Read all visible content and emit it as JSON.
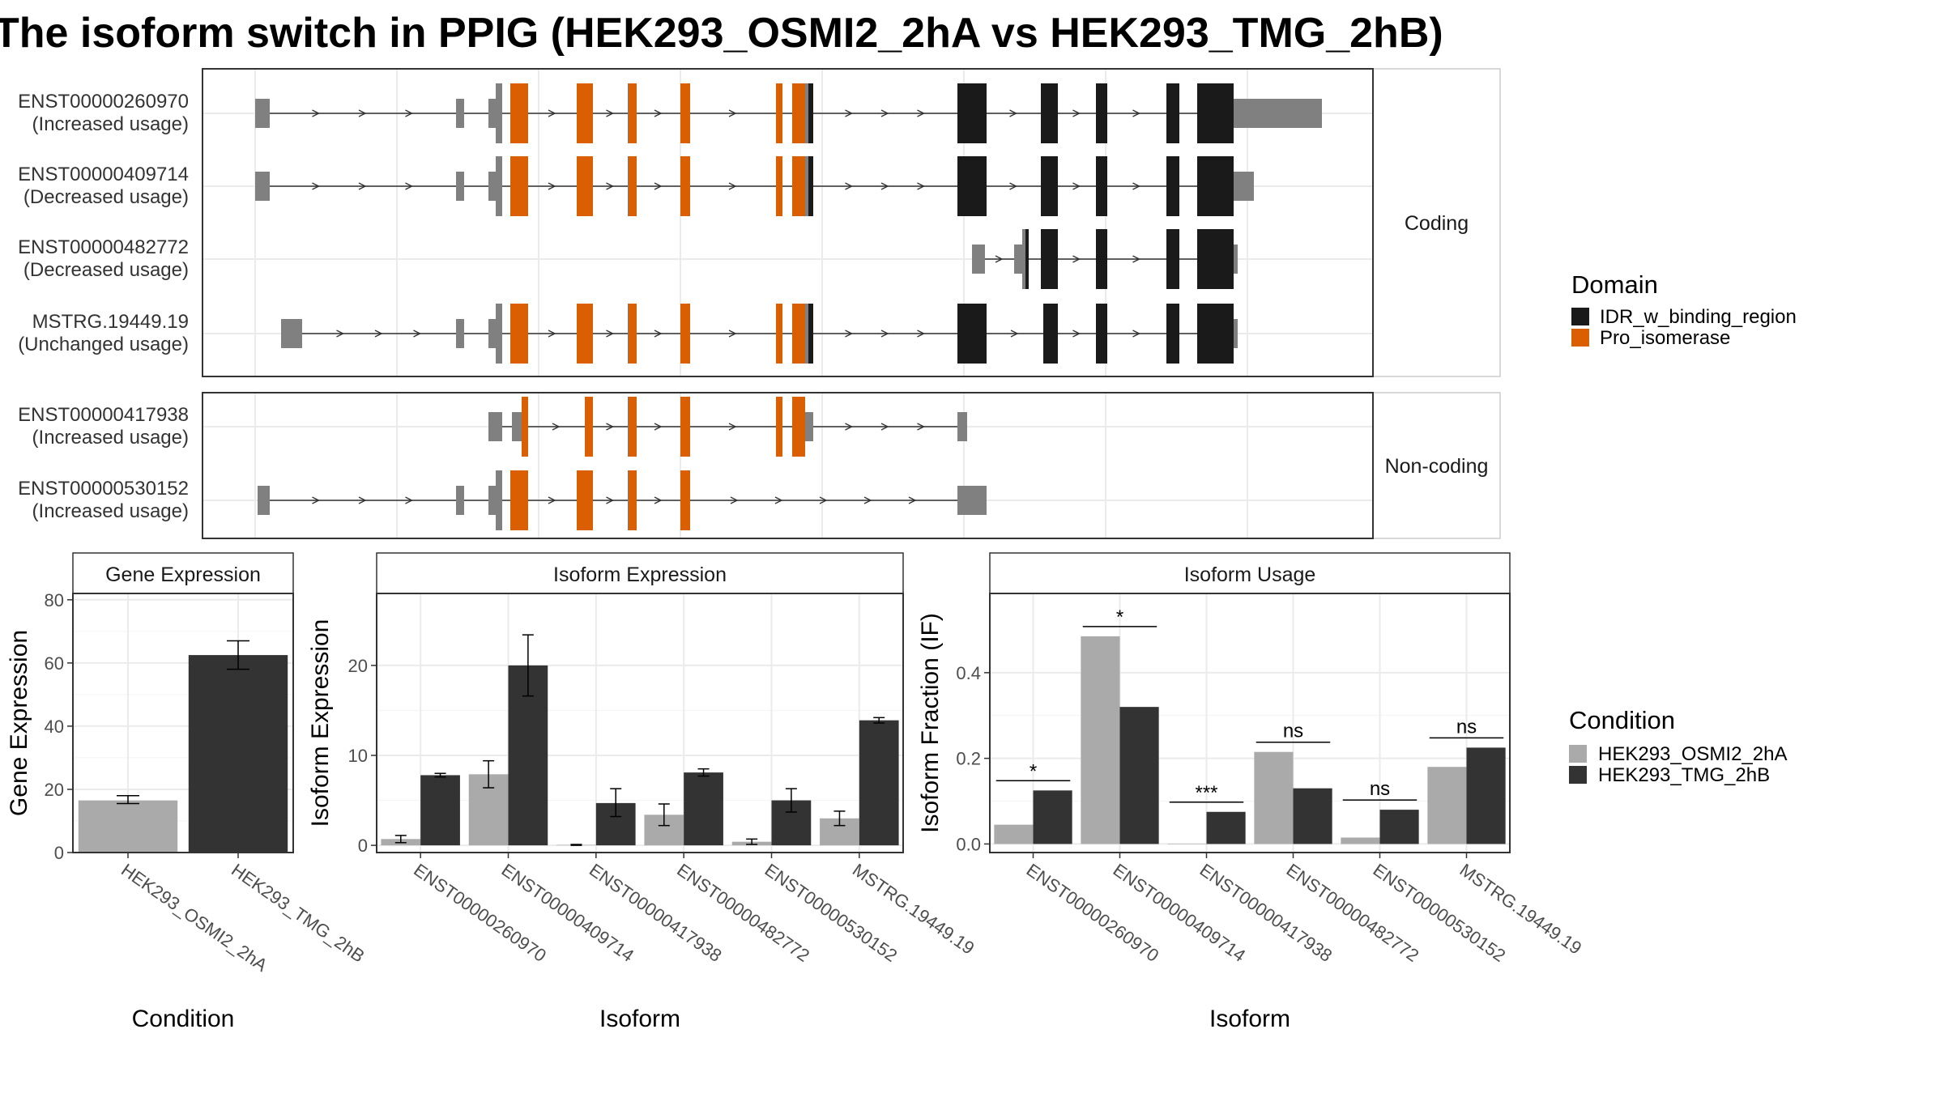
{
  "title": "The isoform switch in PPIG (HEK293_OSMI2_2hA vs HEK293_TMG_2hB)",
  "colors": {
    "idr": "#1a1a1a",
    "pro": "#d95f02",
    "utr": "#808080",
    "cond1": "#aaaaaa",
    "cond2": "#333333",
    "panel_border": "#333333",
    "grid": "#ebebeb"
  },
  "transcript_panel": {
    "facets": [
      {
        "label": "Coding",
        "transcripts": [
          {
            "id": "ENST00000260970",
            "usage": "(Increased usage)"
          },
          {
            "id": "ENST00000409714",
            "usage": "(Decreased usage)"
          },
          {
            "id": "ENST00000482772",
            "usage": "(Decreased usage)"
          },
          {
            "id": "MSTRG.19449.19",
            "usage": "(Unchanged usage)"
          }
        ]
      },
      {
        "label": "Non-coding",
        "transcripts": [
          {
            "id": "ENST00000417938",
            "usage": "(Increased usage)"
          },
          {
            "id": "ENST00000530152",
            "usage": "(Increased usage)"
          }
        ]
      }
    ],
    "domain_legend": {
      "title": "Domain",
      "items": [
        {
          "label": "IDR_w_binding_region",
          "color": "#1a1a1a"
        },
        {
          "label": "Pro_isomerase",
          "color": "#d95f02"
        }
      ]
    }
  },
  "condition_legend": {
    "title": "Condition",
    "items": [
      {
        "label": "HEK293_OSMI2_2hA",
        "color": "#aaaaaa"
      },
      {
        "label": "HEK293_TMG_2hB",
        "color": "#333333"
      }
    ]
  },
  "chart_data": [
    {
      "type": "bar",
      "title": "Gene Expression",
      "xlabel": "Condition",
      "ylabel": "Gene Expression",
      "categories": [
        "HEK293_OSMI2_2hA",
        "HEK293_TMG_2hB"
      ],
      "values": [
        16.5,
        62.5
      ],
      "errors": [
        [
          15.5,
          18
        ],
        [
          58,
          67
        ]
      ],
      "ylim": [
        0,
        82
      ],
      "yticks": [
        0,
        20,
        40,
        60,
        80
      ],
      "grid": true
    },
    {
      "type": "bar",
      "title": "Isoform Expression",
      "xlabel": "Isoform",
      "ylabel": "Isoform Expression",
      "categories": [
        "ENST00000260970",
        "ENST00000409714",
        "ENST00000417938",
        "ENST00000482772",
        "ENST00000530152",
        "MSTRG.19449.19"
      ],
      "series": [
        {
          "name": "HEK293_OSMI2_2hA",
          "values": [
            0.7,
            7.9,
            0.05,
            3.4,
            0.4,
            3.0
          ],
          "errors": [
            [
              0.3,
              1.1
            ],
            [
              6.4,
              9.4
            ],
            [
              0,
              0.1
            ],
            [
              2.2,
              4.6
            ],
            [
              0.1,
              0.7
            ],
            [
              2.2,
              3.8
            ]
          ]
        },
        {
          "name": "HEK293_TMG_2hB",
          "values": [
            7.8,
            20.0,
            4.7,
            8.1,
            5.0,
            13.9
          ],
          "errors": [
            [
              7.6,
              8.0
            ],
            [
              16.6,
              23.4
            ],
            [
              3.2,
              6.3
            ],
            [
              7.7,
              8.5
            ],
            [
              3.7,
              6.3
            ],
            [
              13.6,
              14.2
            ]
          ]
        }
      ],
      "ylim": [
        -0.8,
        28
      ],
      "yticks": [
        0,
        10,
        20
      ],
      "grid": true
    },
    {
      "type": "bar",
      "title": "Isoform Usage",
      "xlabel": "Isoform",
      "ylabel": "Isoform Fraction (IF)",
      "categories": [
        "ENST00000260970",
        "ENST00000409714",
        "ENST00000417938",
        "ENST00000482772",
        "ENST00000530152",
        "MSTRG.19449.19"
      ],
      "series": [
        {
          "name": "HEK293_OSMI2_2hA",
          "values": [
            0.045,
            0.485,
            0.0,
            0.215,
            0.015,
            0.18
          ]
        },
        {
          "name": "HEK293_TMG_2hB",
          "values": [
            0.125,
            0.32,
            0.075,
            0.13,
            0.08,
            0.225
          ]
        }
      ],
      "significance": [
        "*",
        "*",
        "***",
        "ns",
        "ns",
        "ns"
      ],
      "ylim": [
        -0.02,
        0.585
      ],
      "yticks": [
        0.0,
        0.2,
        0.4
      ],
      "grid": true
    }
  ]
}
